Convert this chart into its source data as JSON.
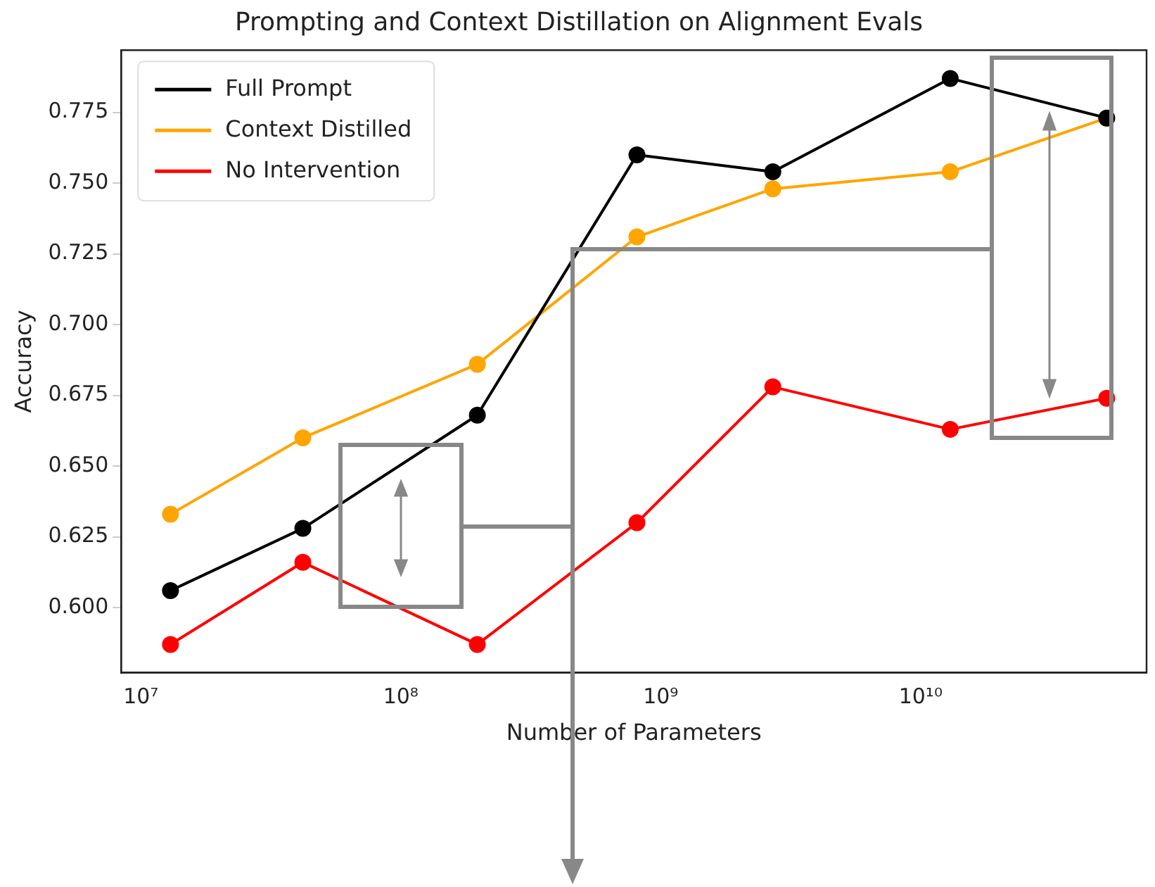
{
  "chart_data": {
    "type": "line",
    "title": "Prompting and Context Distillation on Alignment Evals",
    "xlabel": "Number of Parameters",
    "ylabel": "Accuracy",
    "x": [
      13000000,
      42000000,
      197000000,
      810000000,
      2700000000,
      13000000000,
      52000000000
    ],
    "series": [
      {
        "name": "Full Prompt",
        "color": "#000000",
        "values": [
          0.606,
          0.628,
          0.668,
          0.76,
          0.754,
          0.787,
          0.773
        ]
      },
      {
        "name": "Context Distilled",
        "color": "#ffa500",
        "values": [
          0.633,
          0.66,
          0.686,
          0.731,
          0.748,
          0.754,
          0.773
        ]
      },
      {
        "name": "No Intervention",
        "color": "#ff0000",
        "values": [
          0.587,
          0.616,
          0.587,
          0.63,
          0.678,
          0.663,
          0.674
        ]
      }
    ],
    "log": "x",
    "xlim": [
      8400000,
      74000000000
    ],
    "xticks": [
      {
        "value": 10000000,
        "label": "10⁷"
      },
      {
        "value": 100000000,
        "label": "10⁸"
      },
      {
        "value": 1000000000,
        "label": "10⁹"
      },
      {
        "value": 10000000000,
        "label": "10¹⁰"
      }
    ],
    "ylim": [
      0.577,
      0.797
    ],
    "yticks": [
      {
        "value": 0.6,
        "label": "0.600"
      },
      {
        "value": 0.625,
        "label": "0.625"
      },
      {
        "value": 0.65,
        "label": "0.650"
      },
      {
        "value": 0.675,
        "label": "0.675"
      },
      {
        "value": 0.7,
        "label": "0.700"
      },
      {
        "value": 0.725,
        "label": "0.725"
      },
      {
        "value": 0.75,
        "label": "0.750"
      },
      {
        "value": 0.775,
        "label": "0.775"
      }
    ],
    "grid": false,
    "legend": "top left",
    "marker": "circle",
    "line_style": "solid"
  }
}
